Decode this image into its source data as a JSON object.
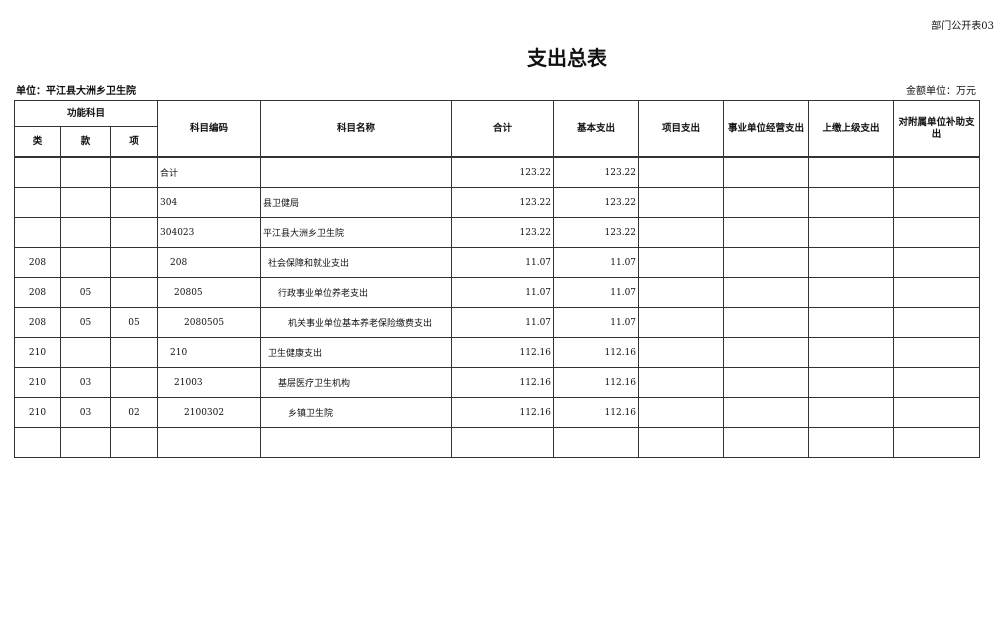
{
  "form_no": "部门公开表03",
  "title": "支出总表",
  "unit_label": "单位：平江县大洲乡卫生院",
  "money_unit": "金额单位：万元",
  "headers": {
    "func": "功能科目",
    "lei": "类",
    "kuan": "款",
    "xiang": "项",
    "code": "科目编码",
    "name": "科目名称",
    "total": "合计",
    "basic": "基本支出",
    "project": "项目支出",
    "business": "事业单位经营支出",
    "upper": "上缴上级支出",
    "subsidy": "对附属单位补助支出"
  },
  "rows": [
    {
      "lei": "",
      "kuan": "",
      "xiang": "",
      "code": "合计",
      "name": "",
      "total": "123.22",
      "basic": "123.22",
      "indent": 0
    },
    {
      "lei": "",
      "kuan": "",
      "xiang": "",
      "code": "304",
      "name": "县卫健局",
      "total": "123.22",
      "basic": "123.22",
      "indent": 0
    },
    {
      "lei": "",
      "kuan": "",
      "xiang": "",
      "code": "304023",
      "name": "平江县大洲乡卫生院",
      "total": "123.22",
      "basic": "123.22",
      "indent": 1
    },
    {
      "lei": "208",
      "kuan": "",
      "xiang": "",
      "code": "208",
      "name": "社会保障和就业支出",
      "total": "11.07",
      "basic": "11.07",
      "indent": 2
    },
    {
      "lei": "208",
      "kuan": "05",
      "xiang": "",
      "code": "20805",
      "name": "行政事业单位养老支出",
      "total": "11.07",
      "basic": "11.07",
      "indent": 3
    },
    {
      "lei": "208",
      "kuan": "05",
      "xiang": "05",
      "code": "2080505",
      "name": "机关事业单位基本养老保险缴费支出",
      "total": "11.07",
      "basic": "11.07",
      "indent": 4
    },
    {
      "lei": "210",
      "kuan": "",
      "xiang": "",
      "code": "210",
      "name": "卫生健康支出",
      "total": "112.16",
      "basic": "112.16",
      "indent": 2
    },
    {
      "lei": "210",
      "kuan": "03",
      "xiang": "",
      "code": "21003",
      "name": "基层医疗卫生机构",
      "total": "112.16",
      "basic": "112.16",
      "indent": 3
    },
    {
      "lei": "210",
      "kuan": "03",
      "xiang": "02",
      "code": "2100302",
      "name": "乡镇卫生院",
      "total": "112.16",
      "basic": "112.16",
      "indent": 4
    },
    {
      "lei": "",
      "kuan": "",
      "xiang": "",
      "code": "",
      "name": "",
      "total": "",
      "basic": "",
      "indent": 0
    }
  ]
}
